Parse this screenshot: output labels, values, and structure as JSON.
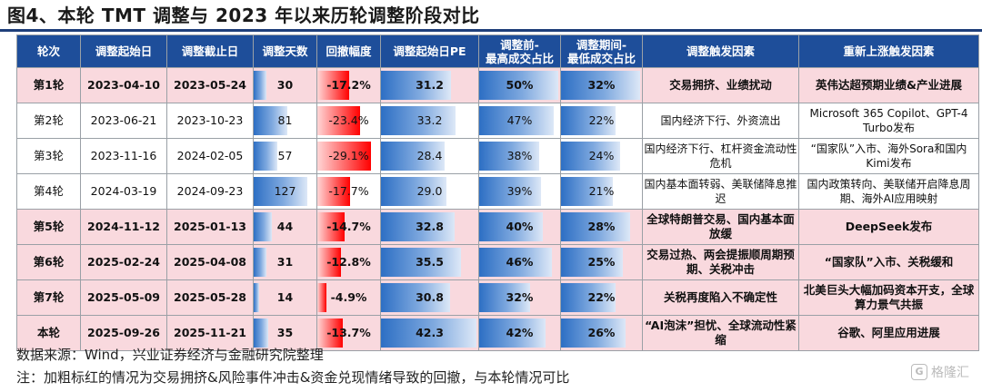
{
  "title": "图4、本轮 TMT 调整与 2023 年以来历轮调整阶段对比",
  "headers": [
    "轮次",
    "调整起始日",
    "调整截止日",
    "调整天数",
    "回撤幅度",
    "调整起始日PE",
    "调整前-\n最高成交占比",
    "调整期间-\n最低成交占比",
    "调整触发因素",
    "重新上涨触发因素"
  ],
  "rows": [
    {
      "round": "第1轮",
      "start": "2023-04-10",
      "end": "2023-05-24",
      "days": "30",
      "drawdown": "-17.2%",
      "pe": "31.2",
      "max_share": "50%",
      "min_share": "32%",
      "trigger": "交易拥挤、业绩扰动",
      "rebound": "英伟达超预期业绩&产业进展",
      "highlight": true,
      "days_v": 30,
      "dd_v": 17.2,
      "pe_v": 31.2,
      "max_v": 50,
      "min_v": 32
    },
    {
      "round": "第2轮",
      "start": "2023-06-21",
      "end": "2023-10-23",
      "days": "81",
      "drawdown": "-23.4%",
      "pe": "33.2",
      "max_share": "47%",
      "min_share": "22%",
      "trigger": "国内经济下行、外资流出",
      "rebound": "Microsoft 365 Copilot、GPT-4 Turbo发布",
      "highlight": false,
      "days_v": 81,
      "dd_v": 23.4,
      "pe_v": 33.2,
      "max_v": 47,
      "min_v": 22
    },
    {
      "round": "第3轮",
      "start": "2023-11-16",
      "end": "2024-02-05",
      "days": "57",
      "drawdown": "-29.1%",
      "pe": "28.4",
      "max_share": "38%",
      "min_share": "24%",
      "trigger": "国内经济下行、杠杆资金流动性危机",
      "rebound": "“国家队”入市、海外Sora和国内Kimi发布",
      "highlight": false,
      "days_v": 57,
      "dd_v": 29.1,
      "pe_v": 28.4,
      "max_v": 38,
      "min_v": 24
    },
    {
      "round": "第4轮",
      "start": "2024-03-19",
      "end": "2024-09-23",
      "days": "127",
      "drawdown": "-17.7%",
      "pe": "29.0",
      "max_share": "39%",
      "min_share": "21%",
      "trigger": "国内基本面转弱、美联储降息推迟",
      "rebound": "国内政策转向、美联储开启降息周期、海外AI应用映射",
      "highlight": false,
      "days_v": 127,
      "dd_v": 17.7,
      "pe_v": 29.0,
      "max_v": 39,
      "min_v": 21
    },
    {
      "round": "第5轮",
      "start": "2024-11-12",
      "end": "2025-01-13",
      "days": "44",
      "drawdown": "-14.7%",
      "pe": "32.8",
      "max_share": "40%",
      "min_share": "28%",
      "trigger": "全球特朗普交易、国内基本面放缓",
      "rebound": "DeepSeek发布",
      "highlight": true,
      "days_v": 44,
      "dd_v": 14.7,
      "pe_v": 32.8,
      "max_v": 40,
      "min_v": 28
    },
    {
      "round": "第6轮",
      "start": "2025-02-24",
      "end": "2025-04-08",
      "days": "31",
      "drawdown": "-12.8%",
      "pe": "35.5",
      "max_share": "46%",
      "min_share": "25%",
      "trigger": "交易过热、两会提振顺周期预期、关税冲击",
      "rebound": "“国家队”入市、关税缓和",
      "highlight": true,
      "days_v": 31,
      "dd_v": 12.8,
      "pe_v": 35.5,
      "max_v": 46,
      "min_v": 25
    },
    {
      "round": "第7轮",
      "start": "2025-05-09",
      "end": "2025-05-28",
      "days": "14",
      "drawdown": "-4.9%",
      "pe": "30.8",
      "max_share": "32%",
      "min_share": "22%",
      "trigger": "关税再度陷入不确定性",
      "rebound": "北美巨头大幅加码资本开支，全球算力景气共振",
      "highlight": true,
      "days_v": 14,
      "dd_v": 4.9,
      "pe_v": 30.8,
      "max_v": 32,
      "min_v": 22
    },
    {
      "round": "本轮",
      "start": "2025-09-26",
      "end": "2025-11-21",
      "days": "35",
      "drawdown": "-13.7%",
      "pe": "42.3",
      "max_share": "42%",
      "min_share": "26%",
      "trigger": "“AI泡沫”担忧、全球流动性紧缩",
      "rebound": "谷歌、阿里应用进展",
      "highlight": true,
      "days_v": 35,
      "dd_v": 13.7,
      "pe_v": 42.3,
      "max_v": 42,
      "min_v": 26
    }
  ],
  "scales": {
    "days_max": 127,
    "dd_max": 29.1,
    "pe_min": 0,
    "pe_max": 42.3,
    "max_share_max": 50,
    "min_share_max": 32
  },
  "source": "数据来源：Wind，兴业证券经济与金融研究院整理",
  "note": "注：加粗标红的情况为交易拥挤&风险事件冲击&资金兑现情绪导致的回撤，与本轮情况可比",
  "watermark": "格隆汇",
  "watermark_logo": "G",
  "colors": {
    "header": "#1e4e9a",
    "highlight_row": "#f9d9de",
    "bar_blue": "#2d6fc4",
    "bar_red": "#ff0000"
  }
}
